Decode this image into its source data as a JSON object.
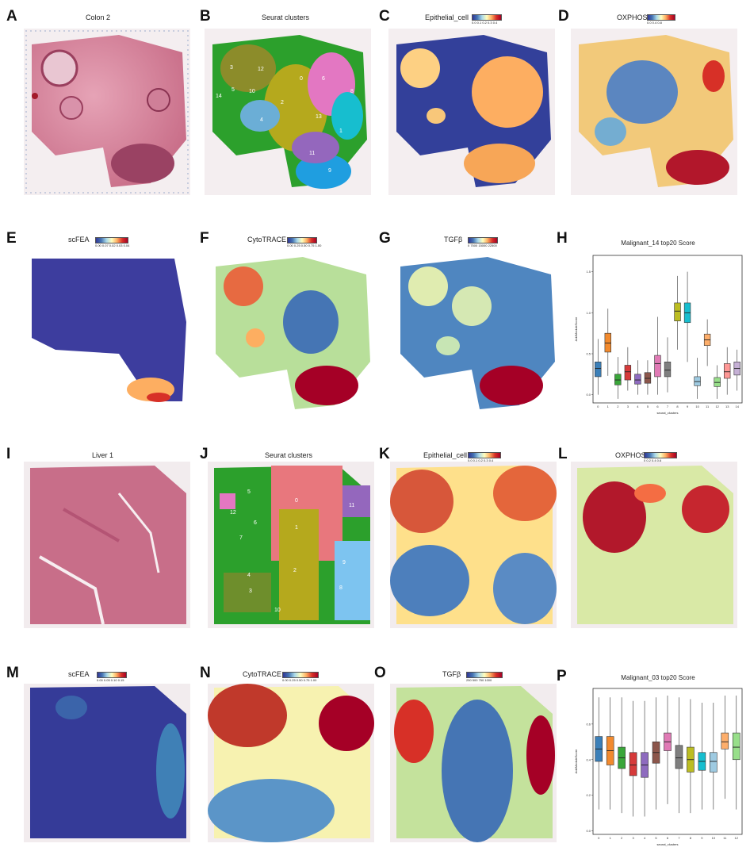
{
  "panels": {
    "A": {
      "letter": "A",
      "title": "Colon 2"
    },
    "B": {
      "letter": "B",
      "title": "Seurat clusters",
      "cluster_labels": [
        "3",
        "12",
        "0",
        "6",
        "14",
        "5",
        "10",
        "2",
        "8",
        "4",
        "13",
        "1",
        "11",
        "9"
      ]
    },
    "C": {
      "letter": "C",
      "title": "Epithelial_cell",
      "colorbar_ticks": "0.0   0.1   0.2   0.3   0.4"
    },
    "D": {
      "letter": "D",
      "title": "OXPHOS",
      "colorbar_ticks": "0.0   0.4   0.8"
    },
    "E": {
      "letter": "E",
      "title": "scFEA",
      "colorbar_ticks": "0.00 0.07 0.02 0.03 0.04"
    },
    "F": {
      "letter": "F",
      "title": "CytoTRACE",
      "colorbar_ticks": "0.00  0.25  0.50  0.75  1.00"
    },
    "G": {
      "letter": "G",
      "title": "TGFβ",
      "colorbar_ticks": "0   7500  15000 22500"
    },
    "H": {
      "letter": "H",
      "title": "Malignant_14 top20 Score",
      "ylabel": "AddModuleScore",
      "xlabel": "seurat_clusters"
    },
    "I": {
      "letter": "I",
      "title": "Liver 1"
    },
    "J": {
      "letter": "J",
      "title": "Seurat clusters",
      "cluster_labels": [
        "5",
        "0",
        "11",
        "12",
        "6",
        "1",
        "7",
        "9",
        "4",
        "2",
        "8",
        "3",
        "10"
      ]
    },
    "K": {
      "letter": "K",
      "title": "Epithelial_cell",
      "colorbar_ticks": "0.0  0.1  0.2  0.3  0.4"
    },
    "L": {
      "letter": "L",
      "title": "OXPHOS",
      "colorbar_ticks": "0    0.2  0.4  0.6"
    },
    "M": {
      "letter": "M",
      "title": "scFEA",
      "colorbar_ticks": "0.00 0.05 0.10 0.15"
    },
    "N": {
      "letter": "N",
      "title": "CytoTRACE",
      "colorbar_ticks": "0.00  0.25  0.50  0.75  1.00"
    },
    "O": {
      "letter": "O",
      "title": "TGFβ",
      "colorbar_ticks": "250   500   750  1000"
    },
    "P": {
      "letter": "P",
      "title": "Malignant_03 top20 Score",
      "ylabel": "AddModuleScore",
      "xlabel": "seurat_clusters"
    }
  },
  "chart_data": [
    {
      "type": "box",
      "title": "Malignant_14 top20 Score",
      "xlabel": "seurat_clusters",
      "ylabel": "AddModuleScore",
      "categories": [
        "0",
        "1",
        "2",
        "3",
        "4",
        "5",
        "6",
        "7",
        "8",
        "9",
        "10",
        "11",
        "12",
        "13",
        "14"
      ],
      "yticks": [
        "0.0",
        "0.5",
        "1.0",
        "1.5"
      ],
      "ylim": [
        -0.1,
        1.7
      ],
      "colors": [
        "#3b7fb8",
        "#f28a2e",
        "#3aa63a",
        "#d63a3a",
        "#8e6bbf",
        "#8c564b",
        "#e07ab5",
        "#7f7f7f",
        "#bcbd22",
        "#17becf",
        "#9ecae1",
        "#fdae6b",
        "#98df8a",
        "#ff9896",
        "#c5b0d5"
      ],
      "median": [
        0.32,
        0.63,
        0.18,
        0.28,
        0.18,
        0.2,
        0.38,
        0.3,
        1.02,
        1.0,
        0.16,
        0.67,
        0.15,
        0.28,
        0.32
      ],
      "q1": [
        0.22,
        0.52,
        0.12,
        0.18,
        0.13,
        0.14,
        0.22,
        0.22,
        0.9,
        0.88,
        0.11,
        0.6,
        0.1,
        0.2,
        0.24
      ],
      "q3": [
        0.4,
        0.75,
        0.25,
        0.36,
        0.25,
        0.27,
        0.48,
        0.4,
        1.12,
        1.12,
        0.22,
        0.74,
        0.21,
        0.38,
        0.4
      ],
      "whisker_low": [
        0.0,
        0.23,
        -0.05,
        0.05,
        0.0,
        0.0,
        0.0,
        0.03,
        0.55,
        0.4,
        -0.05,
        0.35,
        -0.05,
        0.0,
        0.05
      ],
      "whisker_high": [
        0.68,
        1.05,
        0.46,
        0.58,
        0.42,
        0.42,
        0.95,
        0.7,
        1.45,
        1.5,
        0.45,
        0.92,
        0.36,
        0.58,
        0.55
      ]
    },
    {
      "type": "box",
      "title": "Malignant_03 top20 Score",
      "xlabel": "seurat_clusters",
      "ylabel": "AddModuleScore",
      "categories": [
        "0",
        "1",
        "2",
        "3",
        "4",
        "5",
        "6",
        "7",
        "8",
        "9",
        "10",
        "11",
        "12"
      ],
      "yticks": [
        "0.0",
        "0.2",
        "0.4",
        "0.6"
      ],
      "ylim": [
        -0.02,
        0.8
      ],
      "colors": [
        "#3b7fb8",
        "#f28a2e",
        "#3aa63a",
        "#d63a3a",
        "#8e6bbf",
        "#8c564b",
        "#e07ab5",
        "#7f7f7f",
        "#bcbd22",
        "#17becf",
        "#9ecae1",
        "#fdae6b",
        "#98df8a"
      ],
      "median": [
        0.46,
        0.45,
        0.41,
        0.37,
        0.37,
        0.44,
        0.5,
        0.41,
        0.4,
        0.39,
        0.39,
        0.5,
        0.47
      ],
      "q1": [
        0.39,
        0.37,
        0.35,
        0.31,
        0.3,
        0.38,
        0.45,
        0.35,
        0.33,
        0.34,
        0.33,
        0.46,
        0.4
      ],
      "q3": [
        0.53,
        0.53,
        0.47,
        0.44,
        0.44,
        0.5,
        0.55,
        0.48,
        0.47,
        0.44,
        0.44,
        0.55,
        0.55
      ],
      "whisker_low": [
        0.12,
        0.12,
        0.1,
        0.08,
        0.08,
        0.12,
        0.15,
        0.1,
        0.1,
        0.12,
        0.12,
        0.18,
        0.12
      ],
      "whisker_high": [
        0.75,
        0.75,
        0.75,
        0.73,
        0.73,
        0.75,
        0.76,
        0.75,
        0.74,
        0.72,
        0.72,
        0.76,
        0.76
      ]
    }
  ]
}
